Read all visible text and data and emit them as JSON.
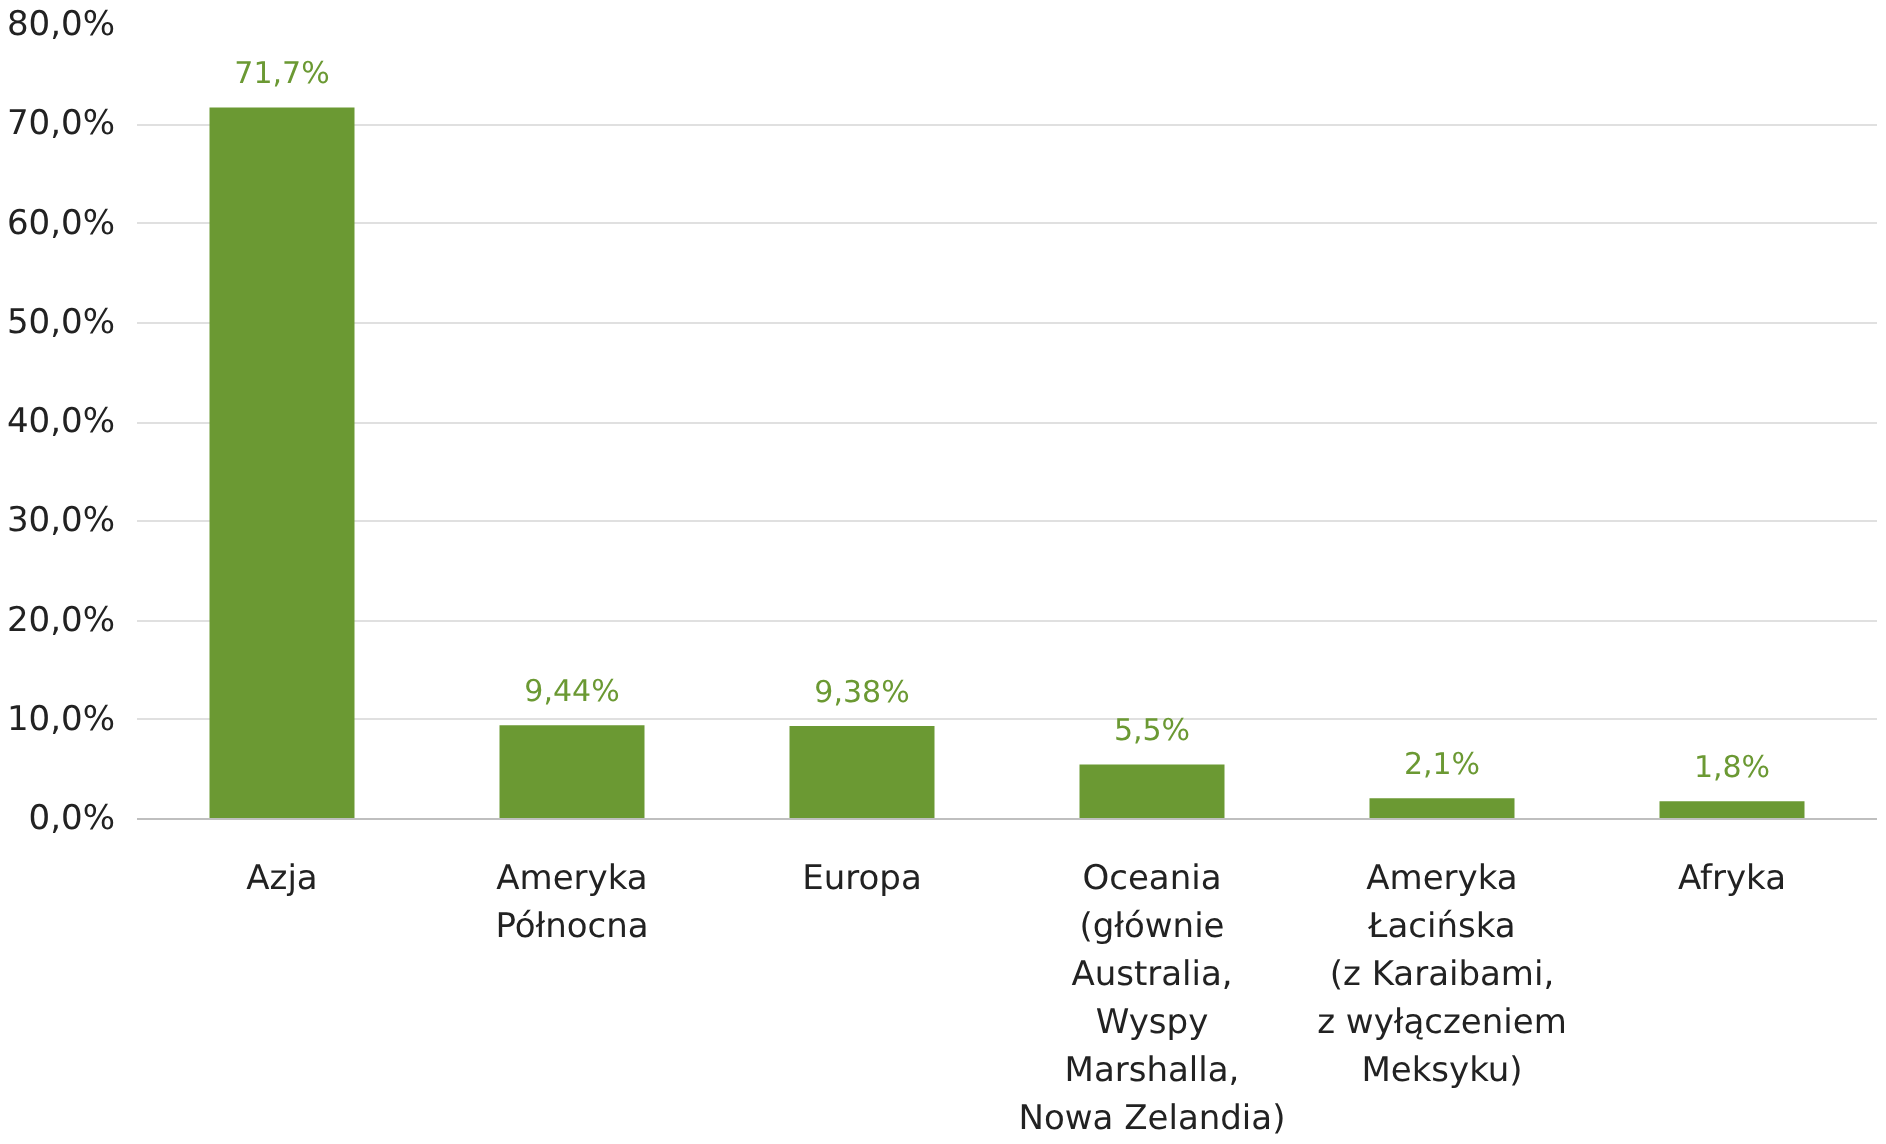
{
  "chart_data": {
    "type": "bar",
    "categories": [
      "Azja",
      "Ameryka\nPółnocna",
      "Europa",
      "Oceania\n(głównie\nAustralia,\nWyspy\nMarshalla,\nNowa Zelandia)",
      "Ameryka\nŁacińska\n(z Karaibami,\nz wyłączeniem\nMeksyku)",
      "Afryka"
    ],
    "values": [
      71.7,
      9.44,
      9.38,
      5.5,
      2.1,
      1.8
    ],
    "value_labels": [
      "71,7%",
      "9,44%",
      "9,38%",
      "5,5%",
      "2,1%",
      "1,8%"
    ],
    "color": "#6b9933",
    "ylim": [
      0,
      80
    ],
    "yticks": [
      {
        "value": 0,
        "label": "0,0%"
      },
      {
        "value": 10,
        "label": "10,0%"
      },
      {
        "value": 20,
        "label": "20,0%"
      },
      {
        "value": 30,
        "label": "30,0%"
      },
      {
        "value": 40,
        "label": "40,0%"
      },
      {
        "value": 50,
        "label": "50,0%"
      },
      {
        "value": 60,
        "label": "60,0%"
      },
      {
        "value": 70,
        "label": "70,0%"
      },
      {
        "value": 80,
        "label": "80,0%"
      }
    ],
    "grid": "y"
  }
}
